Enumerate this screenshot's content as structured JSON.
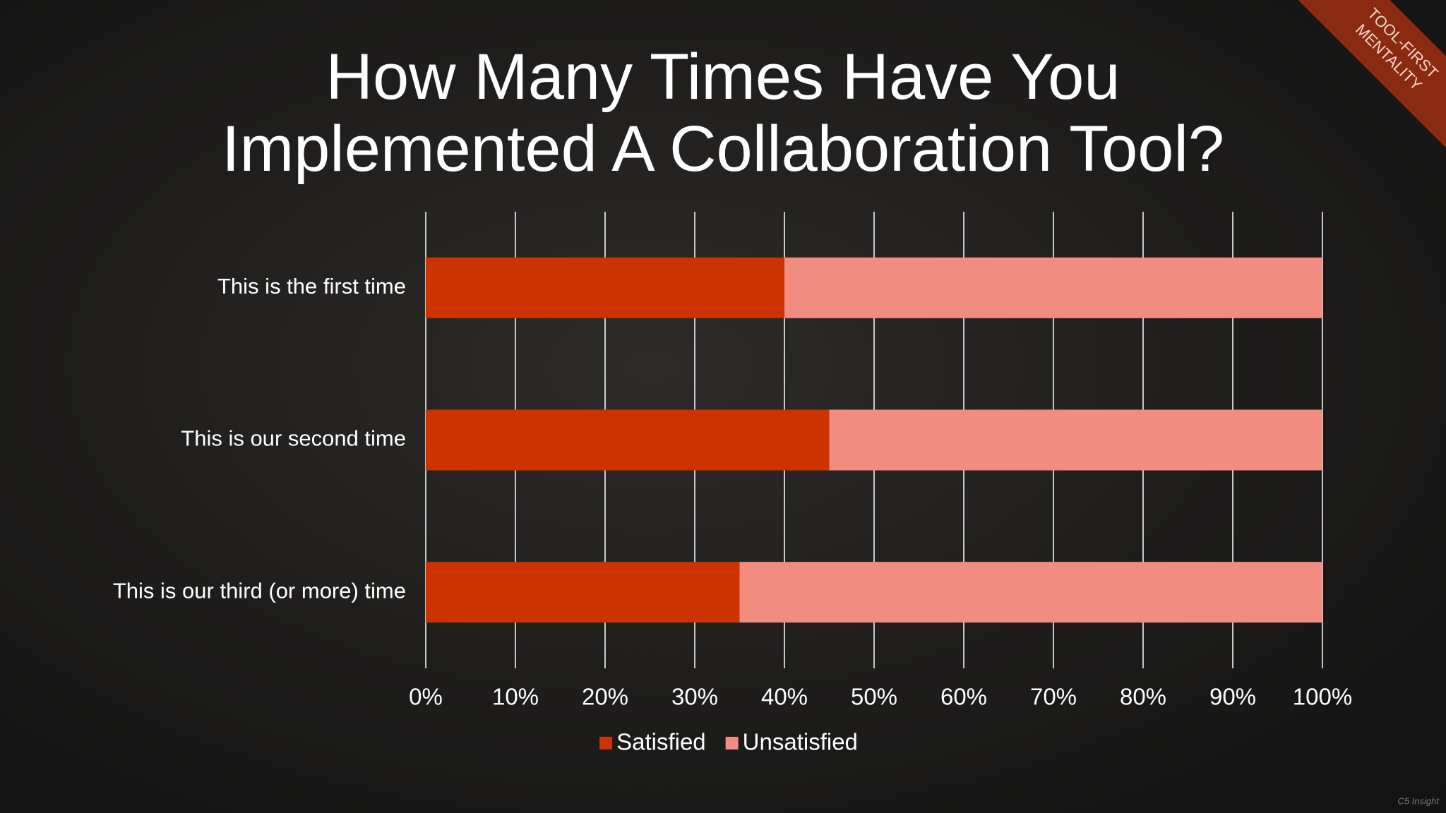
{
  "chart_data": {
    "type": "stacked-bar-horizontal",
    "title": "How Many Times Have You Implemented A Collaboration Tool?",
    "categories": [
      "This is the first time",
      "This is our second time",
      "This is our third (or more) time"
    ],
    "series": [
      {
        "name": "Satisfied",
        "color": "#cc3300",
        "values": [
          40,
          45,
          35
        ]
      },
      {
        "name": "Unsatisfied",
        "color": "#f08c80",
        "values": [
          60,
          55,
          65
        ]
      }
    ],
    "xlim": [
      0,
      100
    ],
    "xticks": [
      {
        "value": 0,
        "label": "0%"
      },
      {
        "value": 10,
        "label": "10%"
      },
      {
        "value": 20,
        "label": "20%"
      },
      {
        "value": 30,
        "label": "30%"
      },
      {
        "value": 40,
        "label": "40%"
      },
      {
        "value": 50,
        "label": "50%"
      },
      {
        "value": 60,
        "label": "60%"
      },
      {
        "value": 70,
        "label": "70%"
      },
      {
        "value": 80,
        "label": "80%"
      },
      {
        "value": 90,
        "label": "90%"
      },
      {
        "value": 100,
        "label": "100%"
      }
    ],
    "grid": true,
    "legend": "bottom"
  },
  "corner_banner": [
    "TOOL-FIRST",
    "MENTALITY"
  ],
  "footer": "C5 Insight"
}
